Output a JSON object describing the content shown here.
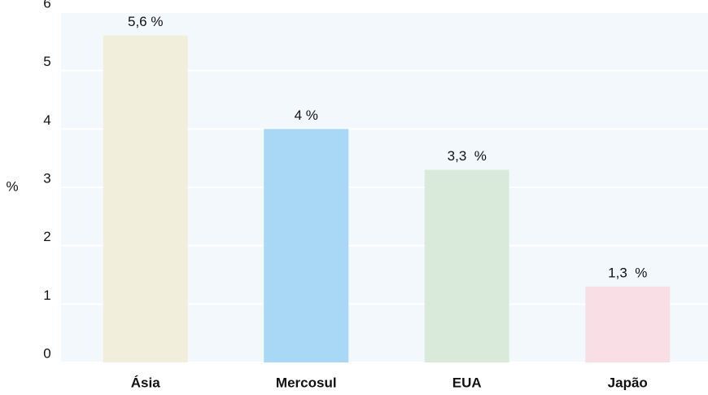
{
  "chart_data": {
    "type": "bar",
    "y_label": "%",
    "categories": [
      "Ásia",
      "Mercosul",
      "EUA",
      "Japão"
    ],
    "values": [
      5.6,
      4,
      3.3,
      1.3
    ],
    "value_labels": [
      "5,6 %",
      "4 %",
      "3,3  %",
      "1,3  %"
    ],
    "colors": [
      "#f2eedc",
      "#a8d8f5",
      "#d9eadb",
      "#f9dfe5"
    ],
    "ylim": [
      0,
      6
    ],
    "yticks": [
      0,
      1,
      2,
      3,
      4,
      5,
      6
    ],
    "grid": true
  }
}
